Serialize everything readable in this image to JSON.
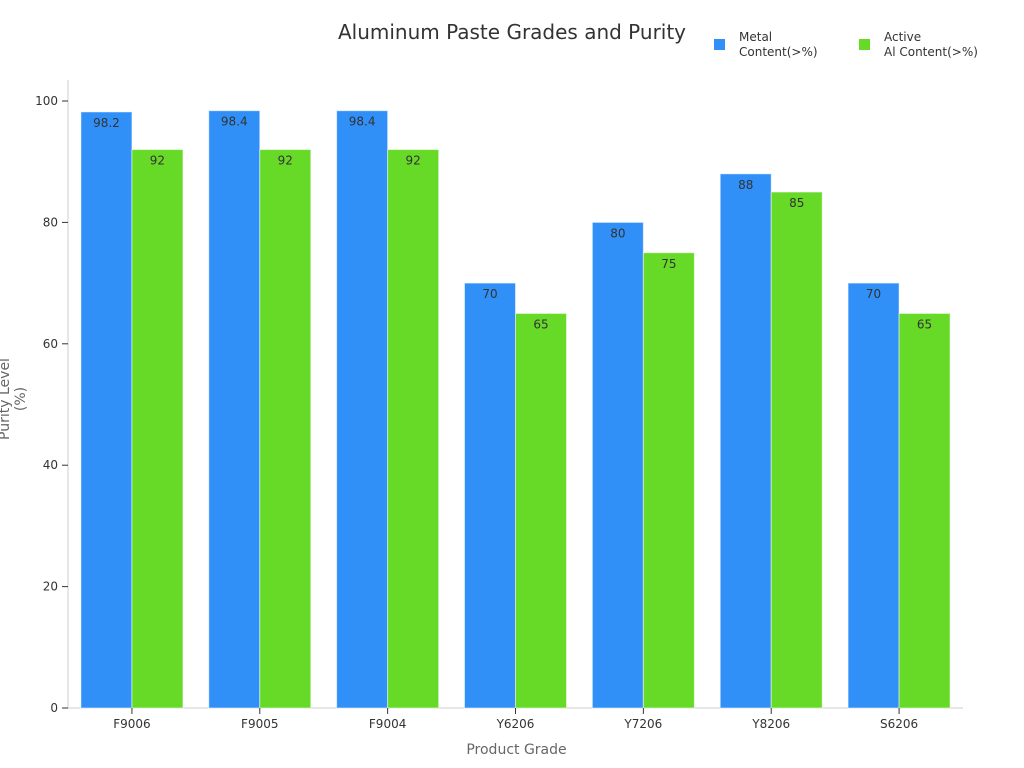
{
  "chart_data": {
    "type": "bar",
    "title": "Aluminum Paste Grades and Purity",
    "xlabel": "Product Grade",
    "ylabel": "Purity Level (%)",
    "categories": [
      "F9006",
      "F9005",
      "F9004",
      "Y6206",
      "Y7206",
      "Y8206",
      "S6206"
    ],
    "series": [
      {
        "name": "Metal Content(>%)",
        "legend_lines": [
          "Metal",
          "Content(>%)"
        ],
        "color": "#3090F8",
        "values": [
          98.2,
          98.4,
          98.4,
          70,
          80,
          88,
          70
        ]
      },
      {
        "name": "Active Al Content(>%)",
        "legend_lines": [
          "Active",
          "Al Content(>%)"
        ],
        "color": "#66DA26",
        "values": [
          92,
          92,
          92,
          65,
          75,
          85,
          65
        ]
      }
    ],
    "ylim": [
      0,
      100
    ],
    "yticks": [
      0,
      20,
      40,
      60,
      80,
      100
    ],
    "grid": false,
    "legend_position": "top-right",
    "data_labels": true
  }
}
